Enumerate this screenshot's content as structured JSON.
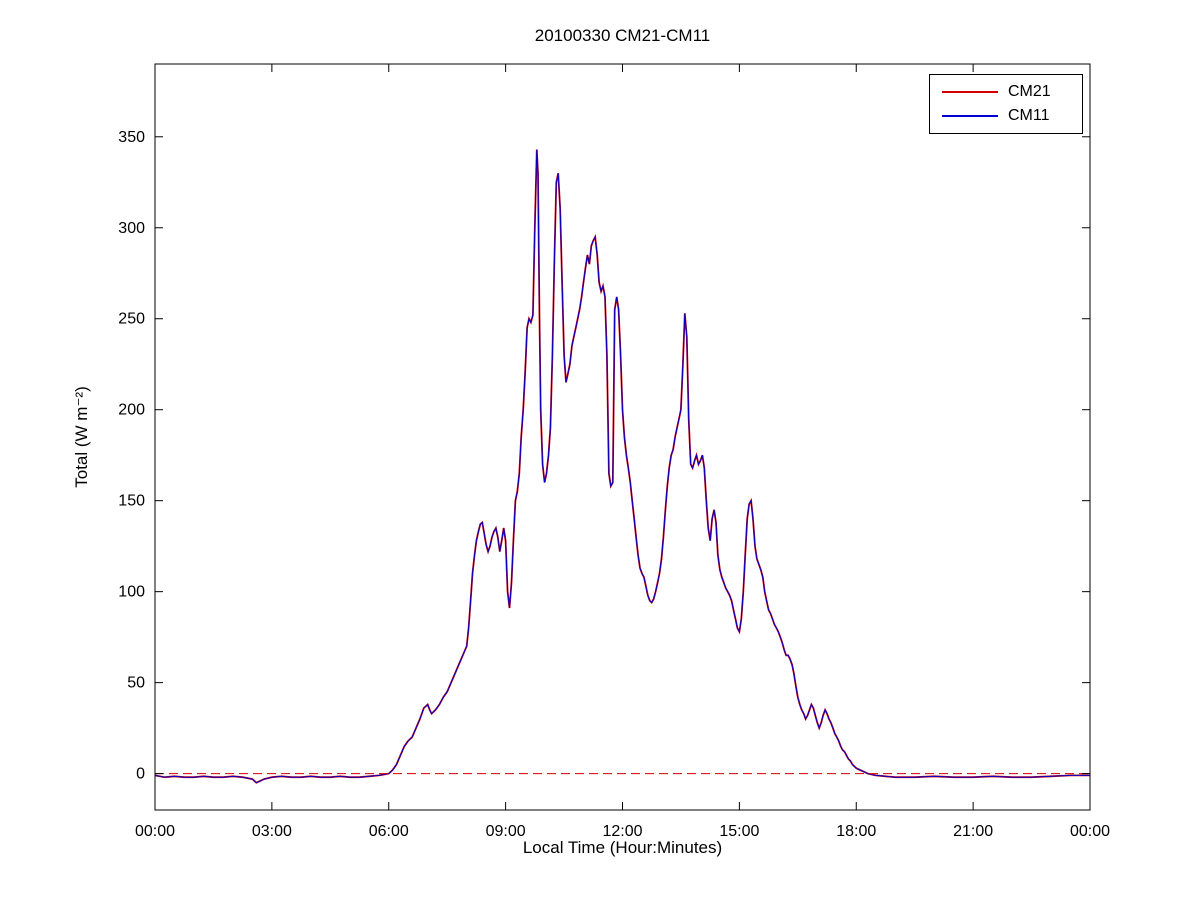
{
  "chart_data": {
    "type": "line",
    "title": "20100330 CM21-CM11",
    "xlabel": "Local Time (Hour:Minutes)",
    "ylabel": "Total (W m⁻²)",
    "xlim_hours": [
      0,
      24
    ],
    "ylim": [
      -20,
      390
    ],
    "xtick_hours": [
      0,
      3,
      6,
      9,
      12,
      15,
      18,
      21,
      24
    ],
    "xtick_labels": [
      "00:00",
      "03:00",
      "06:00",
      "09:00",
      "12:00",
      "15:00",
      "18:00",
      "21:00",
      "00:00"
    ],
    "yticks": [
      0,
      50,
      100,
      150,
      200,
      250,
      300,
      350
    ],
    "grid": false,
    "legend_position": "top-right",
    "series": [
      {
        "name": "CM21",
        "color": "#d40000"
      },
      {
        "name": "CM11",
        "color": "#0000cc"
      }
    ],
    "zero_line": {
      "y": 0,
      "style": "dashed",
      "color": "#d40000"
    },
    "x_hours": [
      0,
      0.25,
      0.5,
      0.75,
      1,
      1.25,
      1.5,
      1.75,
      2,
      2.25,
      2.5,
      2.6,
      2.7,
      2.8,
      3,
      3.25,
      3.5,
      3.75,
      4,
      4.25,
      4.5,
      4.75,
      5,
      5.25,
      5.5,
      5.75,
      6,
      6.1,
      6.2,
      6.3,
      6.4,
      6.5,
      6.6,
      6.7,
      6.8,
      6.9,
      7.0,
      7.05,
      7.1,
      7.2,
      7.3,
      7.4,
      7.5,
      7.6,
      7.7,
      7.8,
      7.9,
      8.0,
      8.05,
      8.1,
      8.15,
      8.2,
      8.25,
      8.3,
      8.35,
      8.4,
      8.45,
      8.5,
      8.55,
      8.6,
      8.65,
      8.7,
      8.75,
      8.8,
      8.85,
      8.9,
      8.95,
      9.0,
      9.05,
      9.1,
      9.15,
      9.2,
      9.25,
      9.3,
      9.35,
      9.4,
      9.45,
      9.5,
      9.55,
      9.6,
      9.65,
      9.7,
      9.75,
      9.8,
      9.83,
      9.87,
      9.9,
      9.95,
      10.0,
      10.05,
      10.1,
      10.15,
      10.2,
      10.25,
      10.3,
      10.35,
      10.4,
      10.45,
      10.5,
      10.55,
      10.6,
      10.65,
      10.7,
      10.75,
      10.8,
      10.85,
      10.9,
      10.95,
      11.0,
      11.05,
      11.1,
      11.15,
      11.2,
      11.25,
      11.3,
      11.35,
      11.4,
      11.45,
      11.5,
      11.55,
      11.6,
      11.65,
      11.7,
      11.75,
      11.8,
      11.85,
      11.9,
      11.95,
      12.0,
      12.05,
      12.1,
      12.15,
      12.2,
      12.25,
      12.3,
      12.35,
      12.4,
      12.45,
      12.5,
      12.55,
      12.6,
      12.65,
      12.7,
      12.75,
      12.8,
      12.85,
      12.9,
      12.95,
      13.0,
      13.05,
      13.1,
      13.15,
      13.2,
      13.25,
      13.3,
      13.35,
      13.4,
      13.45,
      13.5,
      13.55,
      13.6,
      13.65,
      13.7,
      13.75,
      13.8,
      13.85,
      13.9,
      13.95,
      14.0,
      14.05,
      14.1,
      14.15,
      14.2,
      14.25,
      14.3,
      14.35,
      14.4,
      14.45,
      14.5,
      14.55,
      14.6,
      14.65,
      14.7,
      14.75,
      14.8,
      14.85,
      14.9,
      14.95,
      15.0,
      15.05,
      15.1,
      15.15,
      15.2,
      15.25,
      15.3,
      15.35,
      15.4,
      15.45,
      15.5,
      15.55,
      15.6,
      15.65,
      15.7,
      15.75,
      15.8,
      15.85,
      15.9,
      15.95,
      16.0,
      16.05,
      16.1,
      16.15,
      16.2,
      16.25,
      16.3,
      16.35,
      16.4,
      16.45,
      16.5,
      16.55,
      16.6,
      16.65,
      16.7,
      16.75,
      16.8,
      16.85,
      16.9,
      16.95,
      17.0,
      17.05,
      17.1,
      17.15,
      17.2,
      17.25,
      17.3,
      17.35,
      17.4,
      17.45,
      17.5,
      17.55,
      17.6,
      17.65,
      17.7,
      17.75,
      17.8,
      17.85,
      17.9,
      17.95,
      18.0,
      18.1,
      18.2,
      18.3,
      18.5,
      18.75,
      19,
      19.5,
      20,
      20.5,
      21,
      21.5,
      22,
      22.5,
      23,
      23.5,
      24
    ],
    "values": [
      -1,
      -2,
      -1.5,
      -2,
      -2,
      -1.5,
      -2,
      -2,
      -1.5,
      -2,
      -3,
      -5,
      -4,
      -3,
      -2,
      -1.5,
      -2,
      -2,
      -1.5,
      -2,
      -2,
      -1.5,
      -2,
      -2,
      -1.5,
      -1,
      0,
      2,
      5,
      10,
      15,
      18,
      20,
      25,
      30,
      36,
      38,
      35,
      33,
      35,
      38,
      42,
      45,
      50,
      55,
      60,
      65,
      70,
      80,
      95,
      110,
      120,
      128,
      133,
      137,
      138,
      132,
      126,
      122,
      125,
      130,
      133,
      135,
      130,
      122,
      128,
      135,
      128,
      100,
      91,
      105,
      128,
      150,
      155,
      165,
      185,
      200,
      220,
      245,
      250,
      248,
      252,
      300,
      343,
      330,
      250,
      200,
      170,
      160,
      165,
      175,
      190,
      230,
      280,
      325,
      330,
      310,
      270,
      230,
      215,
      220,
      225,
      235,
      240,
      245,
      250,
      255,
      262,
      270,
      278,
      285,
      280,
      290,
      293,
      295,
      285,
      270,
      265,
      268,
      262,
      230,
      165,
      158,
      160,
      255,
      262,
      255,
      230,
      200,
      185,
      175,
      168,
      160,
      150,
      140,
      130,
      120,
      113,
      110,
      108,
      103,
      98,
      95,
      94,
      96,
      100,
      105,
      110,
      118,
      130,
      145,
      158,
      168,
      175,
      178,
      185,
      190,
      195,
      200,
      225,
      253,
      240,
      195,
      170,
      168,
      172,
      175,
      170,
      172,
      175,
      168,
      150,
      135,
      128,
      140,
      145,
      138,
      120,
      112,
      108,
      105,
      102,
      100,
      98,
      95,
      90,
      85,
      80,
      78,
      85,
      100,
      120,
      140,
      148,
      150,
      140,
      125,
      118,
      115,
      112,
      108,
      100,
      95,
      90,
      88,
      85,
      82,
      80,
      78,
      75,
      72,
      68,
      65,
      65,
      63,
      60,
      55,
      48,
      42,
      38,
      35,
      33,
      30,
      32,
      35,
      38,
      36,
      32,
      28,
      25,
      28,
      32,
      35,
      33,
      30,
      28,
      25,
      22,
      20,
      18,
      15,
      13,
      12,
      10,
      8,
      7,
      5,
      4,
      3,
      2,
      1,
      0,
      -1,
      -1.5,
      -2,
      -2,
      -1.5,
      -2,
      -2,
      -1.5,
      -2,
      -2,
      -1.5,
      -1,
      -1
    ]
  }
}
